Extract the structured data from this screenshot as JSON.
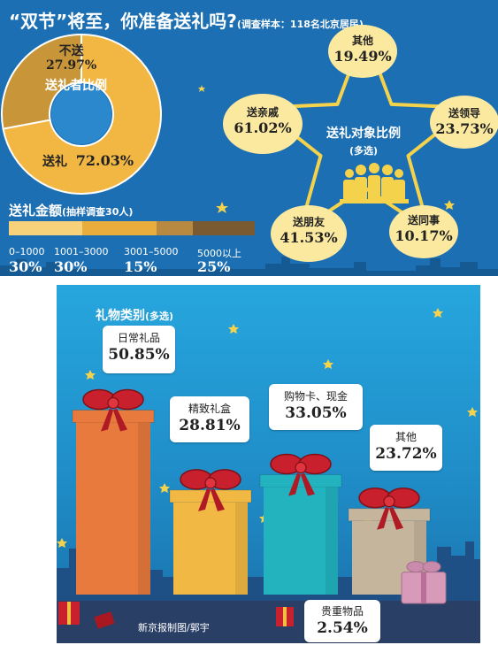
{
  "chart_data": [
    {
      "type": "pie",
      "title": "“双节”将至，你准备送礼吗?",
      "subtitle": "(调查样本：118名北京居民)",
      "center_label": "送礼者比例",
      "slices": [
        {
          "label": "送礼",
          "value": 72.03,
          "display": "72.03%",
          "color": "#f2b743"
        },
        {
          "label": "不送",
          "value": 27.97,
          "display": "27.97%",
          "color": "#c89638"
        }
      ]
    },
    {
      "type": "bar",
      "title": "送礼金额",
      "subtitle": "(抽样调查30人)",
      "categories": [
        "0–1000",
        "1001–3000",
        "3001–5000",
        "5000以上"
      ],
      "values": [
        30,
        30,
        15,
        25
      ],
      "displays": [
        "30%",
        "30%",
        "15%",
        "25%"
      ],
      "colors": [
        "#f7d27a",
        "#e8ad3d",
        "#b88a41",
        "#7a5a31"
      ]
    },
    {
      "type": "table",
      "title": "送礼对象比例",
      "subtitle": "(多选)",
      "items": [
        {
          "label": "其他",
          "value": 19.49,
          "display": "19.49%"
        },
        {
          "label": "送领导",
          "value": 23.73,
          "display": "23.73%"
        },
        {
          "label": "送同事",
          "value": 10.17,
          "display": "10.17%"
        },
        {
          "label": "送朋友",
          "value": 41.53,
          "display": "41.53%"
        },
        {
          "label": "送亲戚",
          "value": 61.02,
          "display": "61.02%"
        }
      ]
    },
    {
      "type": "bar",
      "title": "礼物类别",
      "subtitle": "(多选)",
      "categories": [
        "日常礼品",
        "精致礼盒",
        "购物卡、现金",
        "其他",
        "贵重物品"
      ],
      "values": [
        50.85,
        28.81,
        33.05,
        23.72,
        2.54
      ],
      "displays": [
        "50.85%",
        "28.81%",
        "33.05%",
        "23.72%",
        "2.54%"
      ],
      "colors": [
        "#e77a3c",
        "#f1b943",
        "#22b3be",
        "#c6b59d",
        "#d79ab9"
      ],
      "ylim": [
        0,
        55
      ]
    }
  ],
  "credit": "新京报制图/郭宇",
  "colors": {
    "top_bg": "#1c6fb2",
    "bubble": "#fbe9a0",
    "ribbon": "#c8202c"
  }
}
